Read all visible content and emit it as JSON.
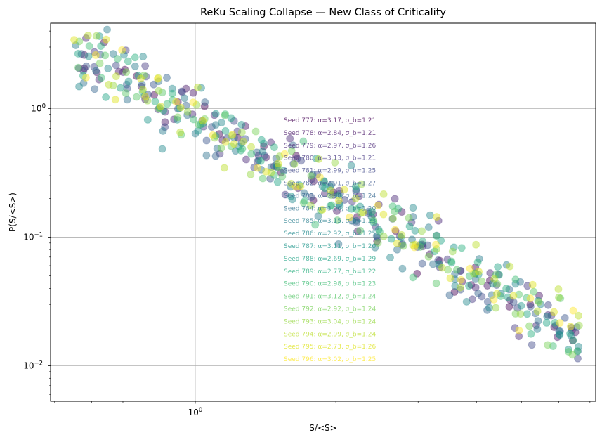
{
  "chart_data": {
    "type": "scatter",
    "title": "ReKu Scaling Collapse — New Class of Criticality",
    "xlabel": "S/<S>",
    "ylabel": "P(S/<S>)",
    "xscale": "log",
    "yscale": "log",
    "xlim": [
      0.49,
      7.2
    ],
    "ylim": [
      0.0053,
      4.6
    ],
    "grid": true,
    "x_major_ticks": [
      {
        "value": 1,
        "base": "10",
        "exp": "0"
      }
    ],
    "x_minor_ticks": [
      0.5,
      0.6,
      0.7,
      0.8,
      0.9,
      2,
      3,
      4,
      5,
      6,
      7
    ],
    "y_major_ticks": [
      {
        "value": 1,
        "base": "10",
        "exp": "0"
      },
      {
        "value": 0.1,
        "base": "10",
        "exp": "−1"
      },
      {
        "value": 0.01,
        "base": "10",
        "exp": "−2"
      }
    ],
    "colormap": "viridis",
    "marker_alpha": 0.45,
    "legend_placement": "center",
    "series": [
      {
        "name": "Seed 777",
        "alpha": 3.17,
        "sigma_b": 1.21,
        "label": "Seed 777: α=3.17, σ_b=1.21",
        "color": "#440154"
      },
      {
        "name": "Seed 778",
        "alpha": 2.84,
        "sigma_b": 1.21,
        "label": "Seed 778: α=2.84, σ_b=1.21",
        "color": "#471365"
      },
      {
        "name": "Seed 779",
        "alpha": 2.97,
        "sigma_b": 1.26,
        "label": "Seed 779: α=2.97, σ_b=1.26",
        "color": "#482576"
      },
      {
        "name": "Seed 780",
        "alpha": 3.13,
        "sigma_b": 1.21,
        "label": "Seed 780: α=3.13, σ_b=1.21",
        "color": "#453781"
      },
      {
        "name": "Seed 781",
        "alpha": 2.99,
        "sigma_b": 1.25,
        "label": "Seed 781: α=2.99, σ_b=1.25",
        "color": "#3f4788"
      },
      {
        "name": "Seed 782",
        "alpha": 2.91,
        "sigma_b": 1.27,
        "label": "Seed 782: α=2.91, σ_b=1.27",
        "color": "#39558c"
      },
      {
        "name": "Seed 783",
        "alpha": 2.98,
        "sigma_b": 1.24,
        "label": "Seed 783: α=2.98, σ_b=1.24",
        "color": "#32648e"
      },
      {
        "name": "Seed 784",
        "alpha": 3.06,
        "sigma_b": 1.2,
        "label": "Seed 784: α=3.06, σ_b=1.20",
        "color": "#2d718e"
      },
      {
        "name": "Seed 785",
        "alpha": 3.15,
        "sigma_b": 1.23,
        "label": "Seed 785: α=3.15, σ_b=1.23",
        "color": "#287d8e"
      },
      {
        "name": "Seed 786",
        "alpha": 2.92,
        "sigma_b": 1.25,
        "label": "Seed 786: α=2.92, σ_b=1.25",
        "color": "#238a8d"
      },
      {
        "name": "Seed 787",
        "alpha": 3.11,
        "sigma_b": 1.2,
        "label": "Seed 787: α=3.11, σ_b=1.20",
        "color": "#1f968b"
      },
      {
        "name": "Seed 788",
        "alpha": 2.69,
        "sigma_b": 1.29,
        "label": "Seed 788: α=2.69, σ_b=1.29",
        "color": "#20a386"
      },
      {
        "name": "Seed 789",
        "alpha": 2.77,
        "sigma_b": 1.22,
        "label": "Seed 789: α=2.77, σ_b=1.22",
        "color": "#29af7f"
      },
      {
        "name": "Seed 790",
        "alpha": 2.98,
        "sigma_b": 1.23,
        "label": "Seed 790: α=2.98, σ_b=1.23",
        "color": "#3dbc74"
      },
      {
        "name": "Seed 791",
        "alpha": 3.12,
        "sigma_b": 1.24,
        "label": "Seed 791: α=3.12, σ_b=1.24",
        "color": "#56c667"
      },
      {
        "name": "Seed 792",
        "alpha": 2.92,
        "sigma_b": 1.24,
        "label": "Seed 792: α=2.92, σ_b=1.24",
        "color": "#75d054"
      },
      {
        "name": "Seed 793",
        "alpha": 3.04,
        "sigma_b": 1.24,
        "label": "Seed 793: α=3.04, σ_b=1.24",
        "color": "#95d840"
      },
      {
        "name": "Seed 794",
        "alpha": 2.99,
        "sigma_b": 1.24,
        "label": "Seed 794: α=2.99, σ_b=1.24",
        "color": "#bade28"
      },
      {
        "name": "Seed 795",
        "alpha": 2.73,
        "sigma_b": 1.26,
        "label": "Seed 795: α=2.73, σ_b=1.26",
        "color": "#dde318"
      },
      {
        "name": "Seed 796",
        "alpha": 3.02,
        "sigma_b": 1.25,
        "label": "Seed 796: α=3.02, σ_b=1.25",
        "color": "#fde725"
      }
    ]
  }
}
